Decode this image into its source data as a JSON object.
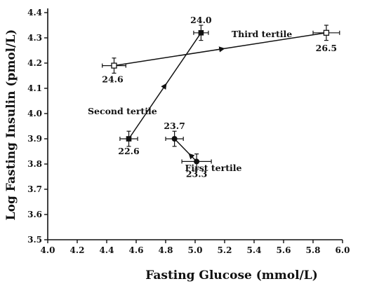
{
  "chart_data": {
    "type": "scatter",
    "xlabel": "Fasting Glucose (mmol/L)",
    "ylabel": "Log Fasting Insulin (pmol/L)",
    "xlim": [
      4.0,
      6.0
    ],
    "ylim": [
      3.5,
      4.4
    ],
    "x_ticks": [
      "4.0",
      "4.2",
      "4.4",
      "4.6",
      "4.8",
      "5.0",
      "5.2",
      "5.4",
      "5.6",
      "5.8",
      "6.0"
    ],
    "y_ticks": [
      "3.5",
      "3.6",
      "3.7",
      "3.8",
      "3.9",
      "4.0",
      "4.1",
      "4.2",
      "4.3",
      "4.4"
    ],
    "grid": false,
    "series": [
      {
        "name": "First tertile",
        "marker": "circle",
        "points": [
          {
            "x": 4.86,
            "y": 3.9,
            "label": "23.7",
            "xerr": 0.06,
            "yerr": 0.03
          },
          {
            "x": 5.01,
            "y": 3.81,
            "label": "23.3",
            "xerr": 0.1,
            "yerr": 0.03
          }
        ]
      },
      {
        "name": "Second tertile",
        "marker": "square",
        "points": [
          {
            "x": 4.55,
            "y": 3.9,
            "label": "22.6",
            "xerr": 0.06,
            "yerr": 0.03
          },
          {
            "x": 5.04,
            "y": 4.32,
            "label": "24.0",
            "xerr": 0.05,
            "yerr": 0.03
          }
        ]
      },
      {
        "name": "Third tertile",
        "marker": "open-square",
        "points": [
          {
            "x": 4.45,
            "y": 4.19,
            "label": "24.6",
            "xerr": 0.08,
            "yerr": 0.03
          },
          {
            "x": 5.89,
            "y": 4.32,
            "label": "26.5",
            "xerr": 0.09,
            "yerr": 0.03
          }
        ]
      }
    ]
  }
}
